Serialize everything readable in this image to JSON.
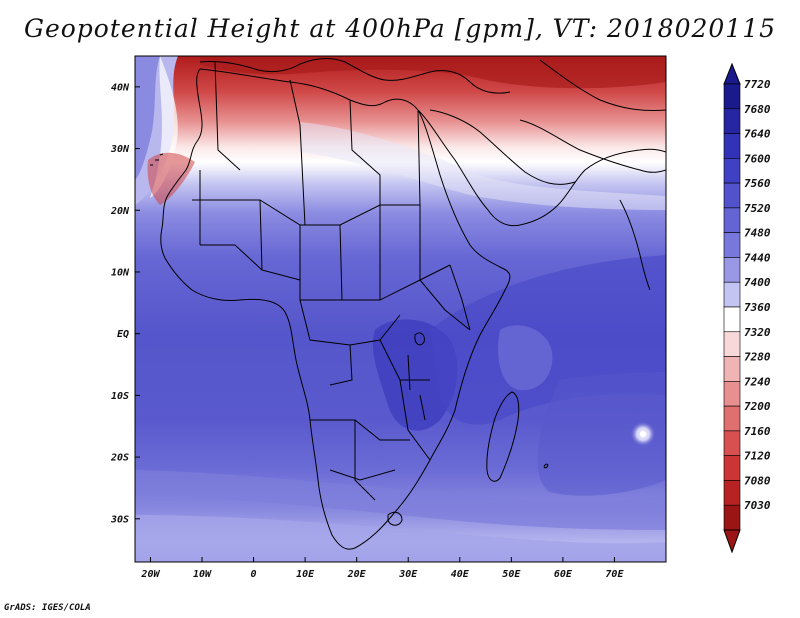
{
  "title": "Geopotential Height at 400hPa [gpm], VT: 2018020115",
  "credit": "GrADS: IGES/COLA",
  "map": {
    "lon_range": [
      -23,
      80
    ],
    "lat_range": [
      -37,
      45
    ],
    "lat_ticks": [
      {
        "value": 40,
        "label": "40N"
      },
      {
        "value": 30,
        "label": "30N"
      },
      {
        "value": 20,
        "label": "20N"
      },
      {
        "value": 10,
        "label": "10N"
      },
      {
        "value": 0,
        "label": "EQ"
      },
      {
        "value": -10,
        "label": "10S"
      },
      {
        "value": -20,
        "label": "20S"
      },
      {
        "value": -30,
        "label": "30S"
      }
    ],
    "lon_ticks": [
      {
        "value": -20,
        "label": "20W"
      },
      {
        "value": -10,
        "label": "10W"
      },
      {
        "value": 0,
        "label": "0"
      },
      {
        "value": 10,
        "label": "10E"
      },
      {
        "value": 20,
        "label": "20E"
      },
      {
        "value": 30,
        "label": "30E"
      },
      {
        "value": 40,
        "label": "40E"
      },
      {
        "value": 50,
        "label": "50E"
      },
      {
        "value": 60,
        "label": "60E"
      },
      {
        "value": 70,
        "label": "70E"
      }
    ]
  },
  "colorbar": {
    "levels": [
      {
        "label": "7720",
        "color": "#1a1a8c"
      },
      {
        "label": "7680",
        "color": "#2626a3"
      },
      {
        "label": "7640",
        "color": "#3232b8"
      },
      {
        "label": "7600",
        "color": "#4040c4"
      },
      {
        "label": "7560",
        "color": "#5252cc"
      },
      {
        "label": "7520",
        "color": "#6464d4"
      },
      {
        "label": "7480",
        "color": "#7878dc"
      },
      {
        "label": "7440",
        "color": "#9898e6"
      },
      {
        "label": "7400",
        "color": "#c4c4f2"
      },
      {
        "label": "7360",
        "color": "#ffffff"
      },
      {
        "label": "7320",
        "color": "#f8d8d8"
      },
      {
        "label": "7280",
        "color": "#f0b4b4"
      },
      {
        "label": "7240",
        "color": "#e89090"
      },
      {
        "label": "7200",
        "color": "#e07070"
      },
      {
        "label": "7160",
        "color": "#d85050"
      },
      {
        "label": "7120",
        "color": "#cc3535"
      },
      {
        "label": "7080",
        "color": "#b82222"
      },
      {
        "label": "7030",
        "color": "#9c1515"
      }
    ]
  }
}
